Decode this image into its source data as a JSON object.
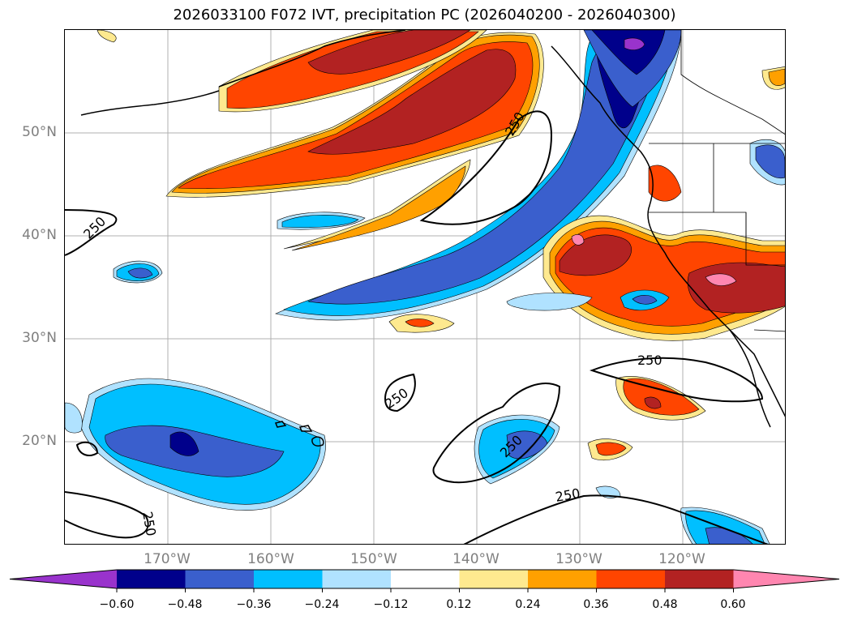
{
  "title": "2026033100 F072 IVT, precipitation PC (2026040200 - 2026040300)",
  "map": {
    "lat_labels": [
      "50°N",
      "40°N",
      "30°N",
      "20°N"
    ],
    "lon_labels": [
      "170°W",
      "160°W",
      "150°W",
      "140°W",
      "130°W",
      "120°W"
    ],
    "contour_level": "250",
    "contour_labels": [
      "250",
      "250",
      "250",
      "250",
      "250",
      "250",
      "250"
    ]
  },
  "colorbar": {
    "ticks": [
      "−0.60",
      "−0.48",
      "−0.36",
      "−0.24",
      "−0.12",
      "0.12",
      "0.24",
      "0.36",
      "0.48",
      "0.60"
    ],
    "colors": [
      "#9933cc",
      "#00008b",
      "#3a5fcd",
      "#00bfff",
      "#b0e2ff",
      "#ffffff",
      "#fee98f",
      "#ffa000",
      "#ff4500",
      "#b22222",
      "#ff86b0"
    ]
  }
}
